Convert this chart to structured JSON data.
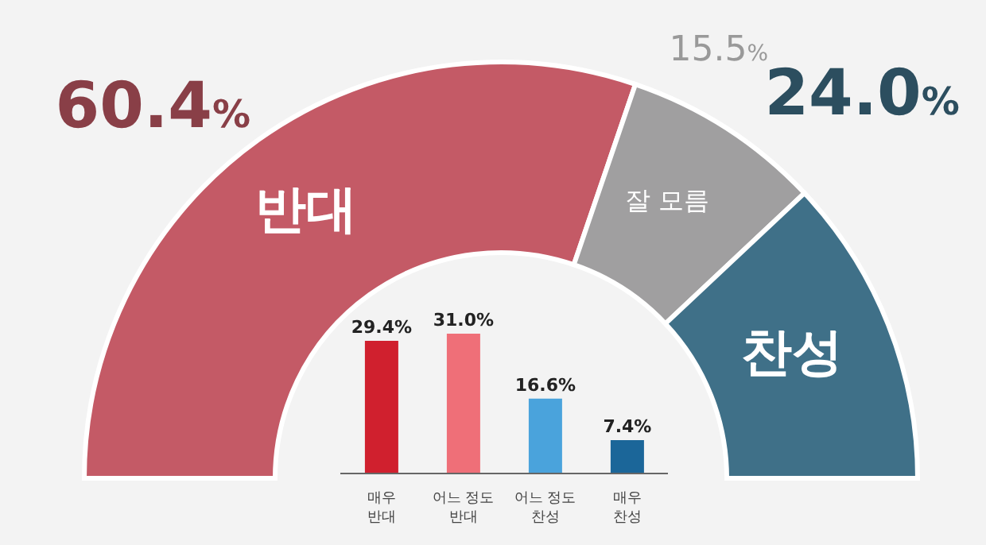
{
  "chart_data": [
    {
      "type": "donut",
      "categories": [
        "반대",
        "잘 모름",
        "찬성"
      ],
      "values": [
        60.4,
        15.5,
        24.0
      ],
      "colors": [
        "#c45a66",
        "#a09fa0",
        "#3f7088"
      ],
      "value_labels": [
        "60.4%",
        "15.5%",
        "24.0%"
      ]
    },
    {
      "type": "bar",
      "categories": [
        "매우 반대",
        "어느 정도 반대",
        "어느 정도 찬성",
        "매우 찬성"
      ],
      "values": [
        29.4,
        31.0,
        16.6,
        7.4
      ],
      "colors": [
        "#d0202e",
        "#ef6f78",
        "#4aa3dc",
        "#1b6699"
      ],
      "value_labels": [
        "29.4%",
        "31.0%",
        "16.6%",
        "7.4%"
      ]
    }
  ]
}
